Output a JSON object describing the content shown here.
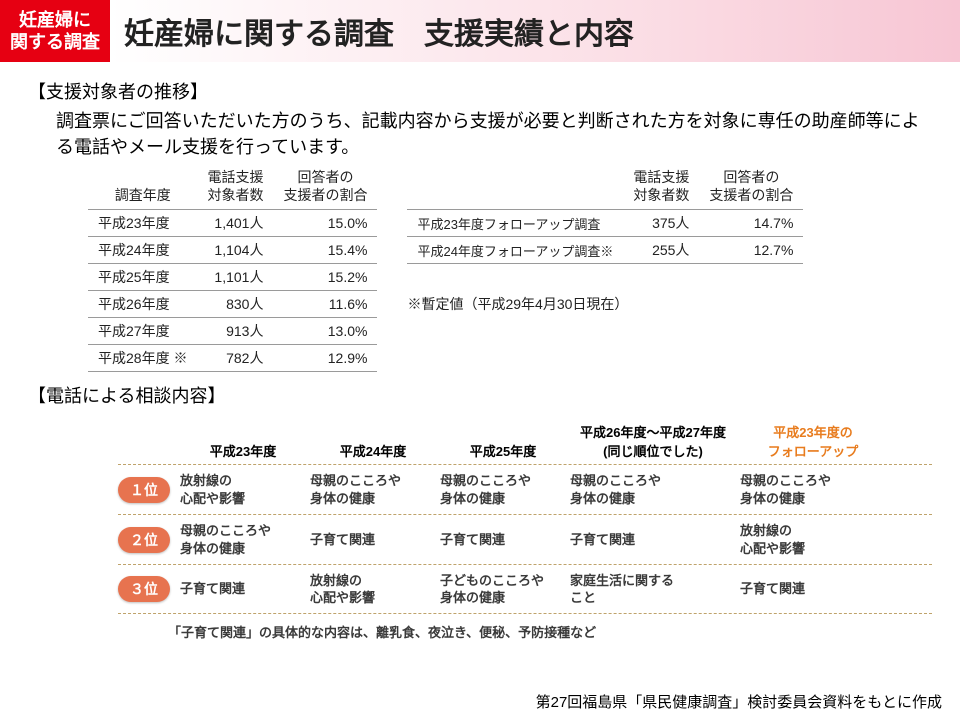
{
  "header": {
    "badge": "妊産婦に\n関する調査",
    "title": "妊産婦に関する調査　支援実績と内容"
  },
  "section1": {
    "heading": "【支援対象者の推移】",
    "lead": "調査票にご回答いただいた方のうち、記載内容から支援が必要と判断された方を対象に専任の助産師等による電話やメール支援を行っています。",
    "left_table": {
      "columns": [
        "調査年度",
        "電話支援\n対象者数",
        "回答者の\n支援者の割合"
      ],
      "rows": [
        [
          "平成23年度",
          "1,401人",
          "15.0%"
        ],
        [
          "平成24年度",
          "1,104人",
          "15.4%"
        ],
        [
          "平成25年度",
          "1,101人",
          "15.2%"
        ],
        [
          "平成26年度",
          "830人",
          "11.6%"
        ],
        [
          "平成27年度",
          "913人",
          "13.0%"
        ],
        [
          "平成28年度 ※",
          "782人",
          "12.9%"
        ]
      ]
    },
    "right_table": {
      "columns": [
        "",
        "電話支援\n対象者数",
        "回答者の\n支援者の割合"
      ],
      "rows": [
        [
          "平成23年度フォローアップ調査",
          "375人",
          "14.7%"
        ],
        [
          "平成24年度フォローアップ調査※",
          "255人",
          "12.7%"
        ]
      ]
    },
    "note": "※暫定値（平成29年4月30日現在）"
  },
  "section2": {
    "heading": "【電話による相談内容】",
    "columns": [
      "",
      "平成23年度",
      "平成24年度",
      "平成25年度",
      "平成26年度～平成27年度\n(同じ順位でした)",
      "平成23年度の\nフォローアップ"
    ],
    "ranks": [
      {
        "label": "１位",
        "cells": [
          "放射線の\n心配や影響",
          "母親のこころや\n身体の健康",
          "母親のこころや\n身体の健康",
          "母親のこころや\n身体の健康",
          "母親のこころや\n身体の健康"
        ]
      },
      {
        "label": "２位",
        "cells": [
          "母親のこころや\n身体の健康",
          "子育て関連",
          "子育て関連",
          "子育て関連",
          "放射線の\n心配や影響"
        ]
      },
      {
        "label": "３位",
        "cells": [
          "子育て関連",
          "放射線の\n心配や影響",
          "子どものこころや\n身体の健康",
          "家庭生活に関する\nこと",
          "子育て関連"
        ]
      }
    ],
    "footnote": "「子育て関連」の具体的な内容は、離乳食、夜泣き、便秘、予防接種など"
  },
  "source": "第27回福島県「県民健康調査」検討委員会資料をもとに作成",
  "style": {
    "badge_bg": "#e60012",
    "title_gradient_to": "#f7c6d4",
    "pill_bg": "#e7734f",
    "orange_text": "#e87c1e",
    "rule_color": "#9a9a9a",
    "dash_color": "#bfa36b"
  }
}
